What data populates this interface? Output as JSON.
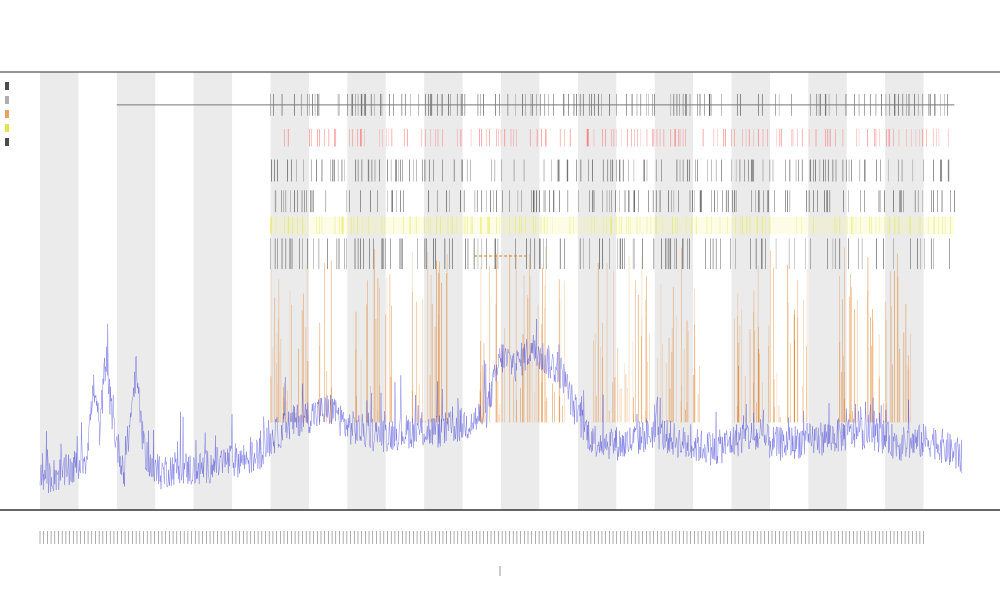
{
  "chart_data": {
    "type": "line",
    "title": "",
    "title_lines": [],
    "xlabel": "",
    "ylabel": "",
    "x_axis": {
      "kind": "index",
      "range": [
        0,
        1200
      ],
      "tick_count": 240
    },
    "y_axis": {
      "range": [
        0,
        100
      ]
    },
    "grid": false,
    "legend_placement": "top-left",
    "background_bands": {
      "count": 12,
      "color": "#ebebeb"
    },
    "series": [
      {
        "kind": "line",
        "color": "#4a4ad8",
        "keypoints": [
          [
            0,
            7
          ],
          [
            20,
            8
          ],
          [
            40,
            9
          ],
          [
            60,
            12
          ],
          [
            70,
            28
          ],
          [
            78,
            18
          ],
          [
            85,
            34
          ],
          [
            92,
            24
          ],
          [
            100,
            15
          ],
          [
            110,
            9
          ],
          [
            125,
            32
          ],
          [
            135,
            14
          ],
          [
            150,
            8
          ],
          [
            180,
            10
          ],
          [
            200,
            9
          ],
          [
            240,
            11
          ],
          [
            280,
            12
          ],
          [
            300,
            16
          ],
          [
            320,
            19
          ],
          [
            340,
            21
          ],
          [
            360,
            22
          ],
          [
            380,
            23
          ],
          [
            400,
            19
          ],
          [
            440,
            17
          ],
          [
            480,
            18
          ],
          [
            520,
            18
          ],
          [
            560,
            20
          ],
          [
            580,
            22
          ],
          [
            600,
            35
          ],
          [
            620,
            33
          ],
          [
            640,
            37
          ],
          [
            660,
            34
          ],
          [
            680,
            31
          ],
          [
            700,
            21
          ],
          [
            720,
            16
          ],
          [
            760,
            15
          ],
          [
            800,
            18
          ],
          [
            840,
            15
          ],
          [
            880,
            14
          ],
          [
            920,
            17
          ],
          [
            960,
            15
          ],
          [
            1000,
            16
          ],
          [
            1040,
            17
          ],
          [
            1080,
            18
          ],
          [
            1120,
            15
          ],
          [
            1160,
            16
          ],
          [
            1180,
            14
          ],
          [
            1200,
            12
          ]
        ]
      },
      {
        "kind": "vertical-spikes",
        "color": "#e07a1a",
        "base": 20,
        "top": 60,
        "count": 260,
        "active_spans": [
          [
            300,
            380
          ],
          [
            410,
            460
          ],
          [
            480,
            540
          ],
          [
            570,
            690
          ],
          [
            720,
            860
          ],
          [
            900,
            1000
          ],
          [
            1040,
            1140
          ]
        ]
      },
      {
        "kind": "hline",
        "color": "#e07a1a",
        "y": 58,
        "x_range": [
          565,
          635
        ]
      }
    ],
    "annotation_tracks": [
      {
        "color": "#000000",
        "y": [
          90,
          95
        ],
        "spans": [
          [
            300,
            1190
          ]
        ]
      },
      {
        "color": "#ff3c3c",
        "y": [
          83,
          87
        ],
        "spans": [
          [
            300,
            1190
          ]
        ]
      },
      {
        "color": "#000000",
        "y": [
          75,
          80
        ],
        "spans": [
          [
            300,
            1190
          ]
        ]
      },
      {
        "color": "#000000",
        "y": [
          68,
          73
        ],
        "spans": [
          [
            300,
            1190
          ]
        ]
      },
      {
        "color": "#e0e000",
        "y": [
          63,
          67
        ],
        "spans": [
          [
            300,
            1190
          ]
        ]
      },
      {
        "color": "#000000",
        "y": [
          55,
          62
        ],
        "spans": [
          [
            300,
            1190
          ]
        ]
      }
    ],
    "header_line": {
      "y": 92.5,
      "x_range": [
        100,
        1190
      ],
      "color": "#777777"
    },
    "legend": {
      "items": [
        {
          "color": "#000000"
        },
        {
          "color": "#8a8a8a"
        },
        {
          "color": "#e07a1a"
        },
        {
          "color": "#d8d800"
        },
        {
          "color": "#000000"
        }
      ]
    }
  }
}
